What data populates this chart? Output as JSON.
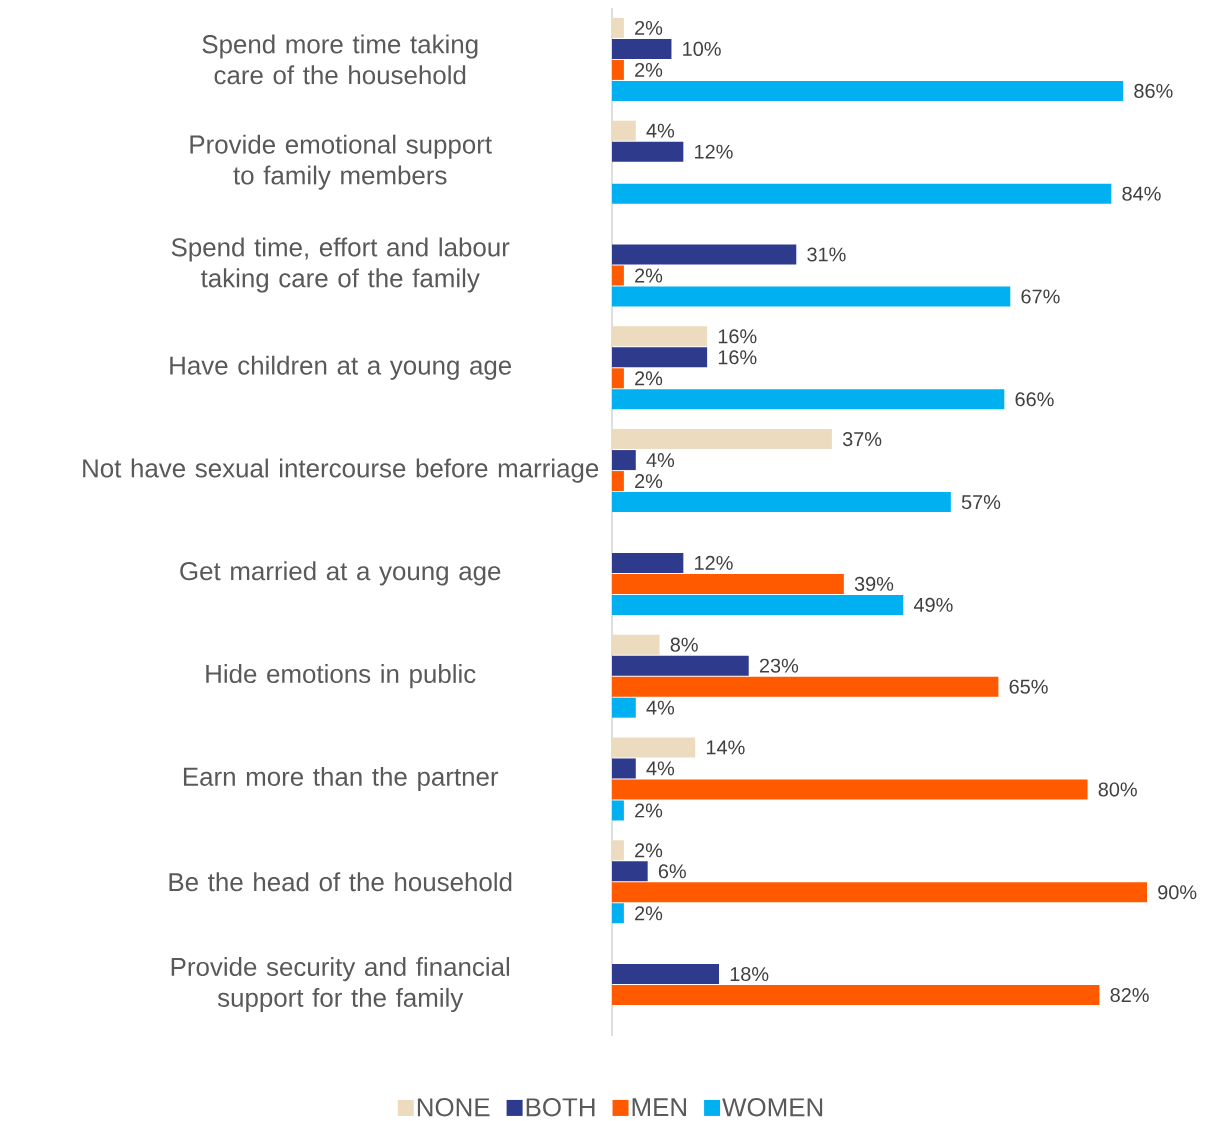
{
  "chart_data": {
    "type": "bar",
    "orientation": "horizontal",
    "legend": "bottom",
    "categories": [
      "Spend more time taking care of the household",
      "Provide emotional support to family members",
      "Spend time, effort and labour taking care of the family",
      "Have children at a young age",
      "Not have sexual intercourse before marriage",
      "Get married at a young age",
      "Hide emotions in public",
      "Earn more than the partner",
      "Be the head of the household",
      "Provide security and financial support for the family"
    ],
    "series": [
      {
        "name": "NONE",
        "color": "#eddbbf",
        "values": [
          2,
          4,
          null,
          16,
          37,
          null,
          8,
          14,
          2,
          null
        ],
        "value_labels": [
          "2%",
          "4%",
          null,
          "16%",
          "37%",
          null,
          "8%",
          "14%",
          "2%",
          null
        ]
      },
      {
        "name": "BOTH",
        "color": "#2e3a8c",
        "values": [
          10,
          12,
          31,
          16,
          4,
          12,
          23,
          4,
          6,
          18
        ],
        "value_labels": [
          "10%",
          "12%",
          "31%",
          "16%",
          "4%",
          "12%",
          "23%",
          "4%",
          "6%",
          "18%"
        ]
      },
      {
        "name": "MEN",
        "color": "#ff5a00",
        "values": [
          2,
          null,
          2,
          2,
          2,
          39,
          65,
          80,
          90,
          82
        ],
        "value_labels": [
          "2%",
          null,
          "2%",
          "2%",
          "2%",
          "39%",
          "65%",
          "80%",
          "90%",
          "82%"
        ]
      },
      {
        "name": "WOMEN",
        "color": "#00b0f0",
        "values": [
          86,
          84,
          67,
          66,
          57,
          49,
          4,
          2,
          2,
          null
        ],
        "value_labels": [
          "86%",
          "84%",
          "67%",
          "66%",
          "57%",
          "49%",
          "4%",
          "2%",
          "2%",
          null
        ]
      }
    ]
  }
}
